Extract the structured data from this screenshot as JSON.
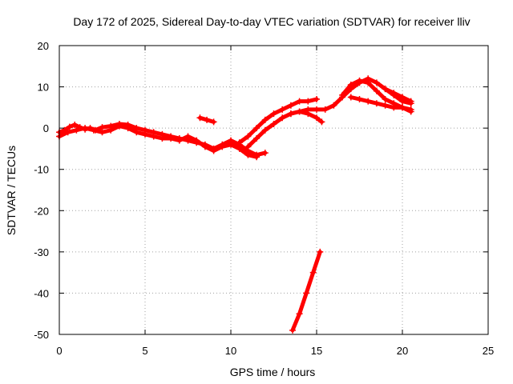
{
  "chart_data": {
    "type": "scatter",
    "title": "Day 172 of 2025, Sidereal Day-to-day VTEC variation (SDTVAR) for receiver lliv",
    "xlabel": "GPS time / hours",
    "ylabel": "SDTVAR / TECUs",
    "xlim": [
      0,
      25
    ],
    "ylim": [
      -50,
      20
    ],
    "xticks": [
      0,
      5,
      10,
      15,
      20,
      25
    ],
    "yticks": [
      -50,
      -40,
      -30,
      -20,
      -10,
      0,
      10,
      20
    ],
    "grid": true,
    "marker": "+",
    "color": "#ff0000",
    "series": [
      {
        "name": "track-1",
        "x": [
          0.0,
          0.3,
          0.6,
          0.9,
          1.2,
          1.5,
          1.8,
          2.1,
          2.5,
          3.0,
          3.5,
          4.0,
          4.5,
          5.0,
          5.5,
          6.0,
          6.5,
          7.0,
          7.5,
          8.0,
          8.5,
          9.0,
          9.5,
          10.0,
          10.5,
          11.0,
          11.5,
          12.0
        ],
        "y": [
          -1,
          -0.5,
          0.3,
          0.8,
          0.2,
          -0.3,
          0,
          -0.5,
          0.2,
          0.5,
          1.0,
          0.8,
          0,
          -0.5,
          -1.0,
          -1.5,
          -2.0,
          -2.5,
          -3.0,
          -3.5,
          -4.0,
          -5.0,
          -4.0,
          -3.0,
          -4.0,
          -5.5,
          -6.5,
          -6.0
        ]
      },
      {
        "name": "track-2",
        "x": [
          0.0,
          0.5,
          1.0,
          1.5,
          2.0,
          2.5,
          3.0,
          3.5,
          4.0,
          4.5,
          5.0,
          5.5,
          6.0,
          6.5,
          7.0,
          7.5,
          8.0,
          8.5,
          9.0,
          9.5,
          10.0,
          10.5,
          11.0,
          11.5
        ],
        "y": [
          -2,
          -1,
          -0.5,
          0,
          -0.5,
          -1,
          -0.5,
          0.5,
          0,
          -1,
          -1.5,
          -2,
          -2.5,
          -2.5,
          -3,
          -2,
          -3,
          -4.5,
          -5.5,
          -4.5,
          -4,
          -5,
          -6.5,
          -7
        ]
      },
      {
        "name": "track-3",
        "x": [
          8.2,
          8.6,
          9.0
        ],
        "y": [
          2.5,
          2.0,
          1.5
        ]
      },
      {
        "name": "track-4",
        "x": [
          10.5,
          11.0,
          11.5,
          12.0,
          12.5,
          13.0,
          13.5,
          14.0,
          14.5,
          15.0
        ],
        "y": [
          -3.5,
          -2,
          0,
          2,
          3.5,
          4.5,
          5.5,
          6.5,
          6.5,
          7.0
        ]
      },
      {
        "name": "track-5",
        "x": [
          11.0,
          11.5,
          12.0,
          12.5,
          13.0,
          13.5,
          14.0,
          14.5,
          15.0,
          15.5,
          16.0,
          16.5,
          17.0,
          17.5,
          18.0,
          18.5,
          19.0,
          19.5,
          20.0,
          20.5
        ],
        "y": [
          -4.5,
          -2.5,
          -0.5,
          1,
          2.5,
          3.5,
          4,
          4.5,
          4.5,
          4.5,
          5.5,
          7.5,
          9.5,
          11,
          12,
          11,
          9.5,
          8,
          6.5,
          6
        ]
      },
      {
        "name": "track-6",
        "x": [
          13.5,
          14.0,
          14.5,
          15.0,
          15.3
        ],
        "y": [
          3.5,
          4.0,
          3.5,
          2.5,
          1.5
        ]
      },
      {
        "name": "track-7",
        "x": [
          16.5,
          17.0,
          17.5,
          18.0,
          18.5,
          19.0,
          19.5,
          20.0,
          20.5
        ],
        "y": [
          8,
          10.5,
          11.5,
          11,
          9,
          7,
          6,
          5,
          4
        ]
      },
      {
        "name": "track-8",
        "x": [
          17.0,
          17.5,
          18.0,
          18.5,
          19.0,
          19.5,
          20.0,
          20.5
        ],
        "y": [
          7.5,
          7,
          6.5,
          6,
          5.5,
          5,
          5,
          4.5
        ]
      },
      {
        "name": "track-9",
        "x": [
          19.0,
          19.5,
          20.0,
          20.5
        ],
        "y": [
          9.5,
          8.5,
          7.5,
          6.5
        ]
      },
      {
        "name": "track-10",
        "x": [
          13.6,
          14.0,
          14.4,
          14.8,
          15.2
        ],
        "y": [
          -49,
          -45,
          -40,
          -35,
          -30
        ]
      }
    ]
  }
}
